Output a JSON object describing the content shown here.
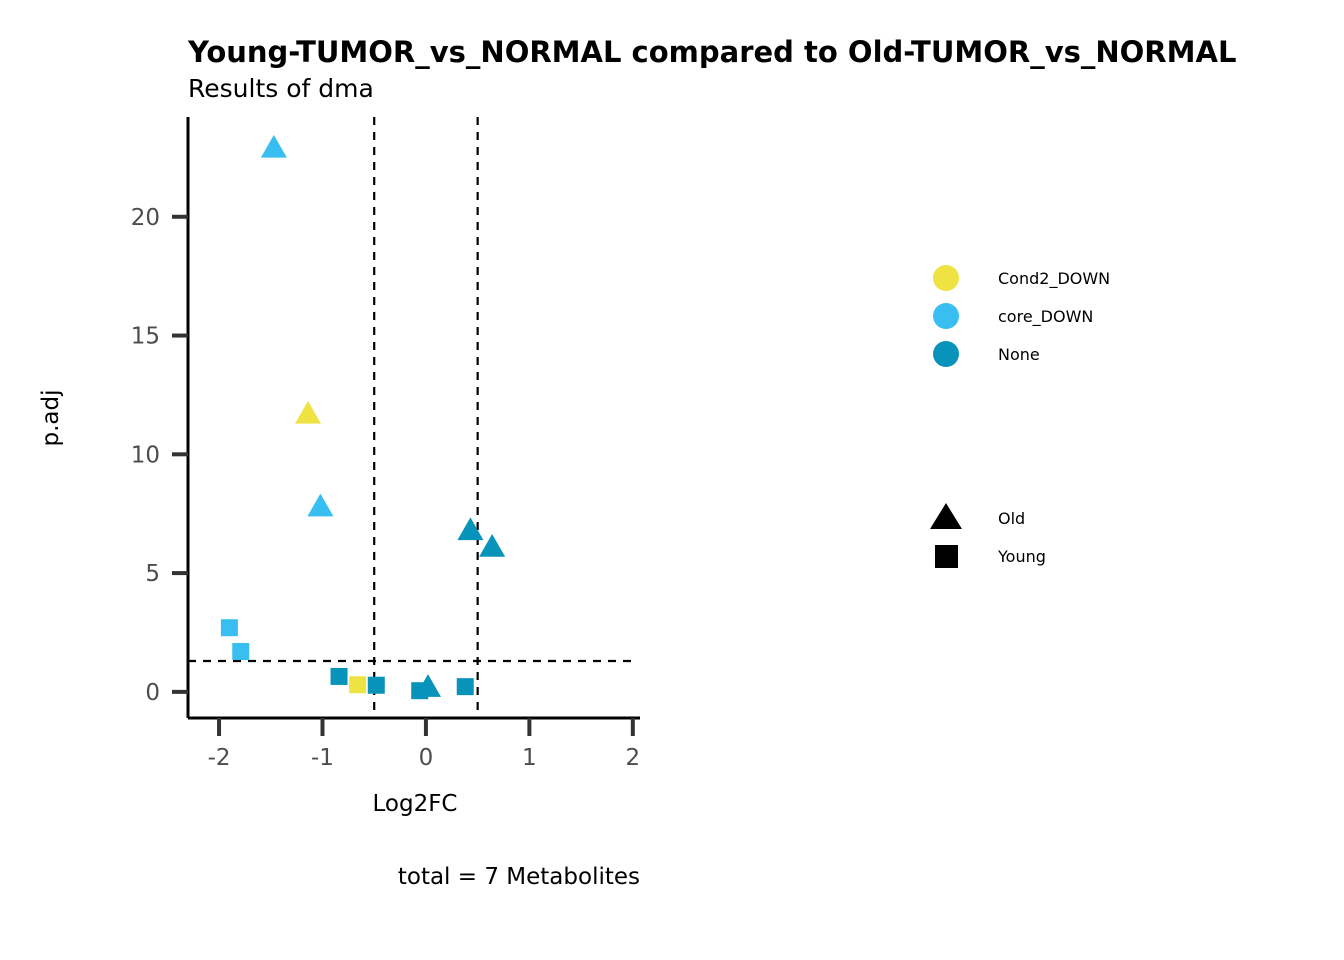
{
  "chart_data": {
    "type": "scatter",
    "title": "Young-TUMOR_vs_NORMAL compared to Old-TUMOR_vs_NORMAL",
    "subtitle": "Results of dma",
    "xlabel": "Log2FC",
    "ylabel": "p.adj",
    "caption": "total = 7 Metabolites",
    "xlim": [
      -2.3,
      2.05
    ],
    "ylim": [
      -1.1,
      24.2
    ],
    "x_ticks": [
      -2,
      -1,
      0,
      1,
      2
    ],
    "x_tick_labels": [
      "-2",
      "-1",
      "0",
      "1",
      "2"
    ],
    "y_ticks": [
      0,
      5,
      10,
      15,
      20
    ],
    "y_tick_labels": [
      "0",
      "5",
      "10",
      "15",
      "20"
    ],
    "grid": false,
    "reference_lines": {
      "vertical": [
        -0.5,
        0.5
      ],
      "horizontal": [
        1.3
      ],
      "style": "dashed"
    },
    "color_legend": {
      "entries": [
        {
          "label": "Cond2_DOWN",
          "color": "#EFE344"
        },
        {
          "label": "core_DOWN",
          "color": "#38BEF0"
        },
        {
          "label": "None",
          "color": "#0893BB"
        }
      ]
    },
    "shape_legend": {
      "entries": [
        {
          "label": "Old",
          "shape": "triangle"
        },
        {
          "label": "Young",
          "shape": "square"
        }
      ]
    },
    "points": [
      {
        "x": -1.47,
        "y": 22.9,
        "color_group": "core_DOWN",
        "shape_group": "Old"
      },
      {
        "x": -1.14,
        "y": 11.7,
        "color_group": "Cond2_DOWN",
        "shape_group": "Old"
      },
      {
        "x": -1.02,
        "y": 7.8,
        "color_group": "core_DOWN",
        "shape_group": "Old"
      },
      {
        "x": 0.43,
        "y": 6.8,
        "color_group": "None",
        "shape_group": "Old"
      },
      {
        "x": 0.64,
        "y": 6.1,
        "color_group": "None",
        "shape_group": "Old"
      },
      {
        "x": 0.02,
        "y": 0.2,
        "color_group": "None",
        "shape_group": "Old"
      },
      {
        "x": -1.9,
        "y": 2.7,
        "color_group": "core_DOWN",
        "shape_group": "Young"
      },
      {
        "x": -1.79,
        "y": 1.7,
        "color_group": "core_DOWN",
        "shape_group": "Young"
      },
      {
        "x": -0.84,
        "y": 0.65,
        "color_group": "None",
        "shape_group": "Young"
      },
      {
        "x": -0.66,
        "y": 0.3,
        "color_group": "Cond2_DOWN",
        "shape_group": "Young"
      },
      {
        "x": -0.48,
        "y": 0.28,
        "color_group": "None",
        "shape_group": "Young"
      },
      {
        "x": -0.06,
        "y": 0.05,
        "color_group": "None",
        "shape_group": "Young"
      },
      {
        "x": 0.38,
        "y": 0.22,
        "color_group": "None",
        "shape_group": "Young"
      }
    ]
  }
}
